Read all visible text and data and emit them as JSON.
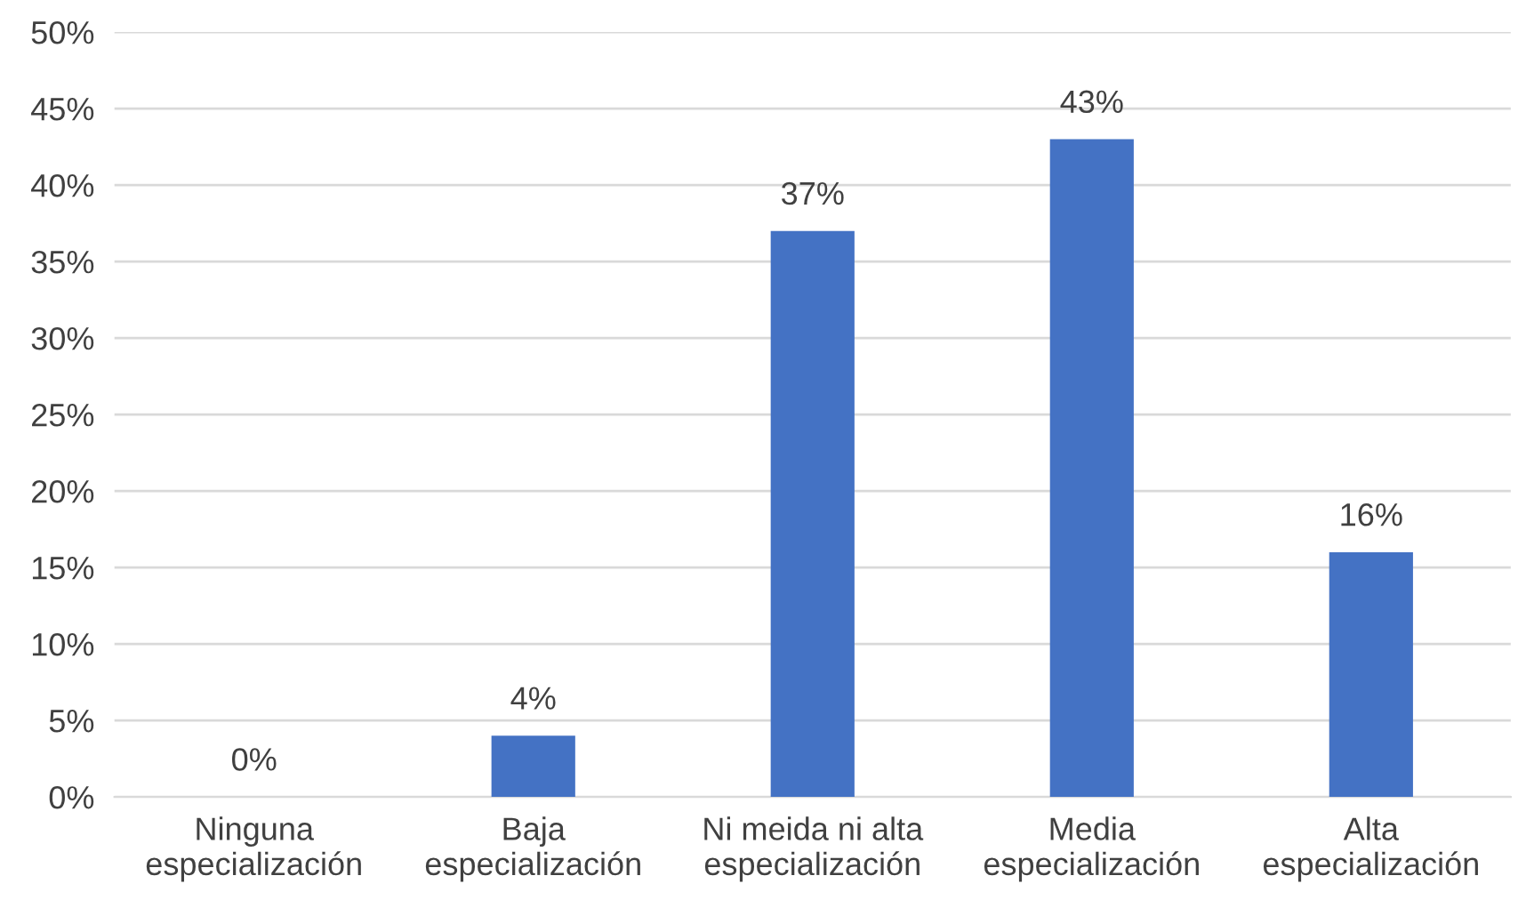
{
  "chart_data": {
    "type": "bar",
    "categories": [
      "Ninguna\nespecialización",
      "Baja\nespecialización",
      "Ni meida ni alta\nespecialización",
      "Media\nespecialización",
      "Alta\nespecialización"
    ],
    "values": [
      0,
      4,
      37,
      43,
      16
    ],
    "value_labels": [
      "0%",
      "4%",
      "37%",
      "43%",
      "16%"
    ],
    "color": "#4472c4",
    "ylim": [
      0,
      50
    ],
    "yticks": [
      {
        "value": 0,
        "label": "0%"
      },
      {
        "value": 5,
        "label": "5%"
      },
      {
        "value": 10,
        "label": "10%"
      },
      {
        "value": 15,
        "label": "15%"
      },
      {
        "value": 20,
        "label": "20%"
      },
      {
        "value": 25,
        "label": "25%"
      },
      {
        "value": 30,
        "label": "30%"
      },
      {
        "value": 35,
        "label": "35%"
      },
      {
        "value": 40,
        "label": "40%"
      },
      {
        "value": 45,
        "label": "45%"
      },
      {
        "value": 50,
        "label": "50%"
      }
    ],
    "grid": "y",
    "legend": false
  }
}
